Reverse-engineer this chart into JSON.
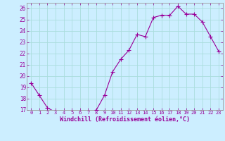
{
  "x": [
    0,
    1,
    2,
    3,
    4,
    5,
    6,
    7,
    8,
    9,
    10,
    11,
    12,
    13,
    14,
    15,
    16,
    17,
    18,
    19,
    20,
    21,
    22,
    23
  ],
  "y": [
    19.4,
    18.3,
    17.2,
    16.8,
    16.7,
    16.8,
    16.8,
    16.8,
    17.0,
    18.3,
    20.4,
    21.5,
    22.3,
    23.7,
    23.5,
    25.2,
    25.4,
    25.4,
    26.2,
    25.5,
    25.5,
    24.8,
    23.5,
    22.2
  ],
  "line_color": "#990099",
  "marker": "+",
  "marker_size": 4,
  "bg_color": "#cceeff",
  "grid_color": "#aadddd",
  "xlabel": "Windchill (Refroidissement éolien,°C)",
  "ylim": [
    17,
    26.5
  ],
  "xlim": [
    -0.5,
    23.5
  ],
  "yticks": [
    17,
    18,
    19,
    20,
    21,
    22,
    23,
    24,
    25,
    26
  ],
  "xticks": [
    0,
    1,
    2,
    3,
    4,
    5,
    6,
    7,
    8,
    9,
    10,
    11,
    12,
    13,
    14,
    15,
    16,
    17,
    18,
    19,
    20,
    21,
    22,
    23
  ],
  "tick_color": "#990099",
  "label_color": "#990099",
  "spine_color": "#999999"
}
